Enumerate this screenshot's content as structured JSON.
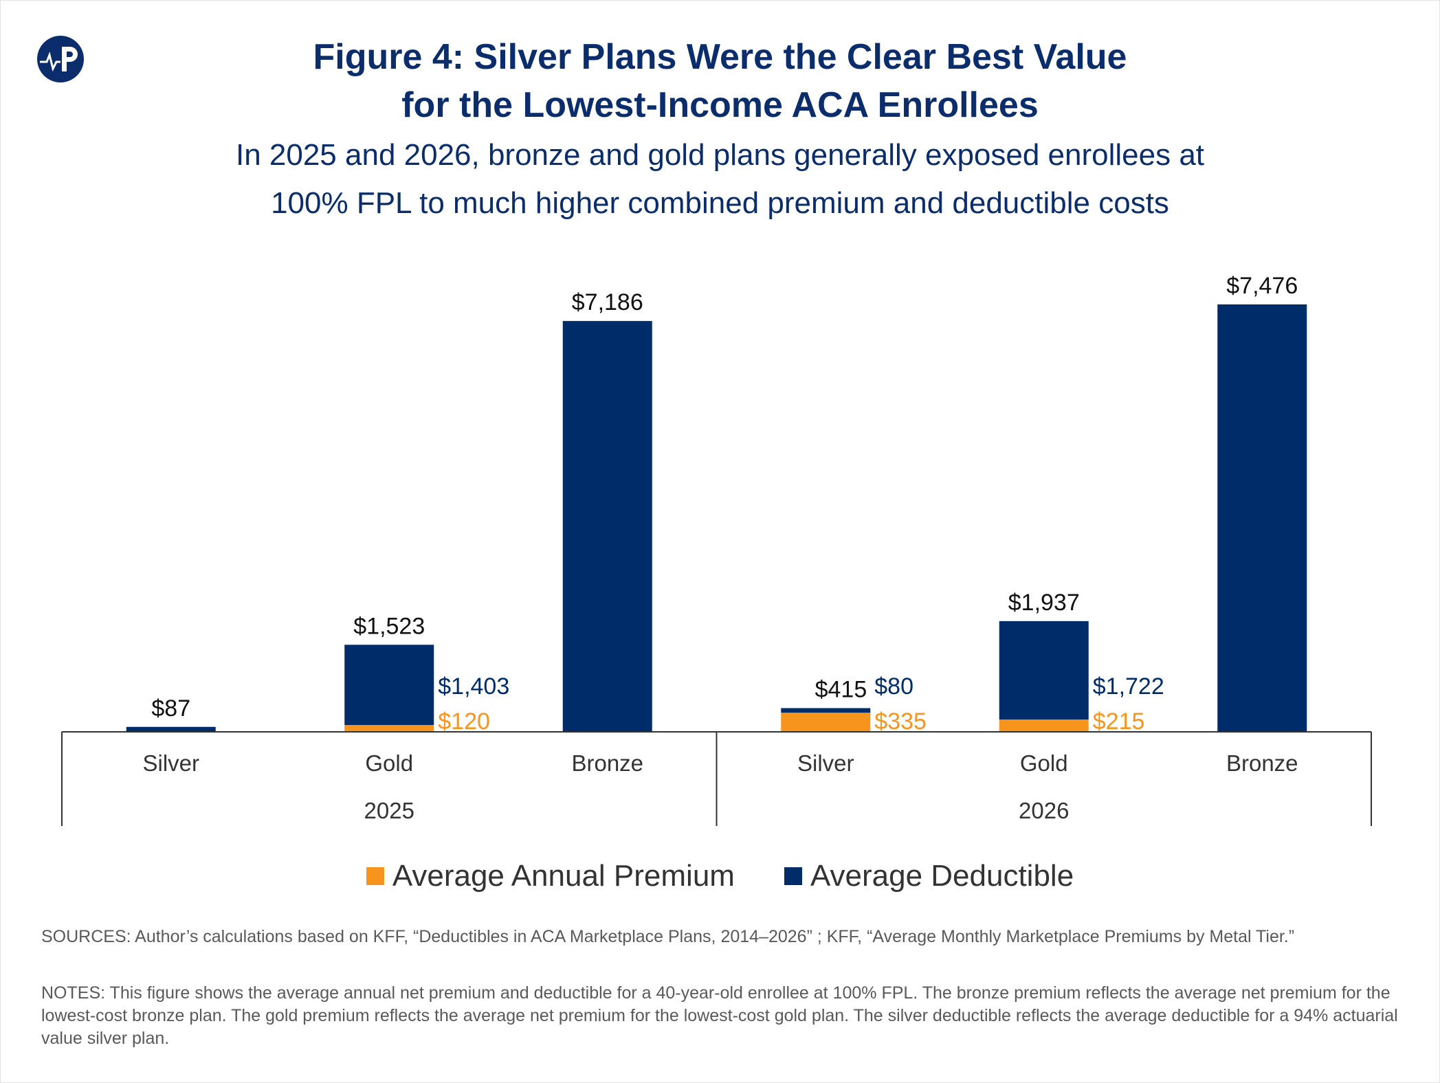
{
  "header": {
    "title_line1": "Figure 4: Silver Plans Were the Clear Best Value",
    "title_line2": "for the Lowest-Income ACA Enrollees",
    "subtitle_line1": "In 2025 and 2026, bronze and gold plans generally exposed enrollees at",
    "subtitle_line2": "100% FPL to much higher combined premium and deductible costs"
  },
  "logo": {
    "icon": "publication-logo-icon",
    "color": "#0b2d6b"
  },
  "colors": {
    "premium": "#f7941d",
    "deductible": "#002d6a",
    "total_label": "#111111"
  },
  "chart_data": {
    "type": "bar",
    "stacked": true,
    "groups": [
      {
        "name": "2025",
        "categories": [
          "Silver",
          "Gold",
          "Bronze"
        ]
      },
      {
        "name": "2026",
        "categories": [
          "Silver",
          "Gold",
          "Bronze"
        ]
      }
    ],
    "series": [
      {
        "name": "Average Annual Premium",
        "values": [
          0,
          120,
          0,
          335,
          215,
          0
        ]
      },
      {
        "name": "Average Deductible",
        "values": [
          87,
          1403,
          7186,
          80,
          1722,
          7476
        ]
      }
    ],
    "totals": [
      87,
      1523,
      7186,
      415,
      1937,
      7476
    ],
    "total_labels": [
      "$87",
      "$1,523",
      "$7,186",
      "$415",
      "$1,937",
      "$7,476"
    ],
    "premium_labels": [
      "",
      "$120",
      "",
      "$335",
      "$215",
      ""
    ],
    "deductible_labels": [
      "",
      "$1,403",
      "",
      "$80",
      "$1,722",
      ""
    ],
    "ylim": [
      0,
      7476
    ],
    "grid": false,
    "legend_position": "bottom"
  },
  "legend": [
    {
      "label": "Average Annual Premium",
      "color": "#f7941d"
    },
    {
      "label": "Average Deductible",
      "color": "#002d6a"
    }
  ],
  "sources": "SOURCES: Author’s calculations based on KFF, “Deductibles in ACA Marketplace Plans, 2014–2026” ; KFF, “Average Monthly Marketplace Premiums by Metal Tier.”",
  "notes": "NOTES: This figure shows the average annual net premium and deductible for a 40-year-old enrollee at 100% FPL. The bronze premium reflects the average net premium for the lowest-cost bronze plan. The gold premium reflects the average net premium for the lowest-cost gold plan. The silver deductible reflects the average deductible for a 94% actuarial value silver plan."
}
